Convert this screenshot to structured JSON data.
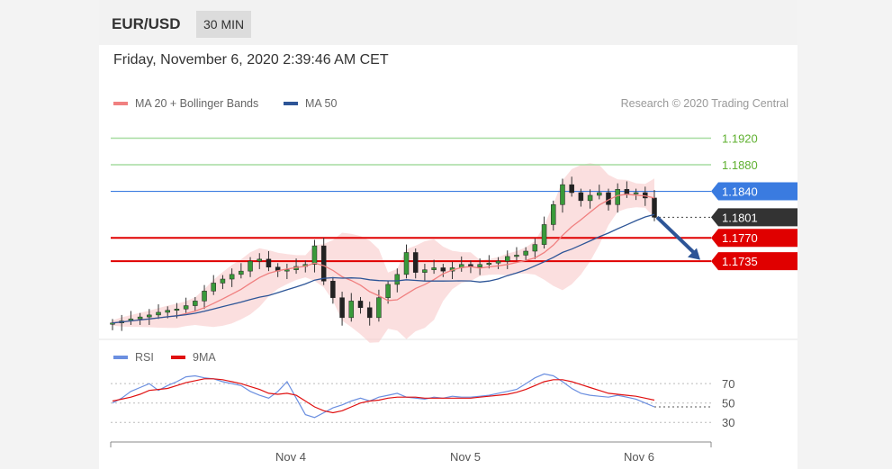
{
  "header": {
    "symbol": "EUR/USD",
    "timeframe": "30 MIN"
  },
  "datetime": "Friday, November 6, 2020 2:39:46 AM CET",
  "legend": [
    {
      "label": "MA 20 + Bollinger Bands",
      "color": "#f08080"
    },
    {
      "label": "MA 50",
      "color": "#2d5597"
    }
  ],
  "credit": "Research © 2020 Trading Central",
  "rsi_legend": [
    {
      "label": "RSI",
      "color": "#6b8fe0"
    },
    {
      "label": "9MA",
      "color": "#e01010"
    }
  ],
  "colors": {
    "resistance_green": "#a6dca0",
    "pivot_blue": "#3a7be0",
    "support_red": "#e00000",
    "price_tag": "#333333",
    "arrow": "#2d5597"
  },
  "chart_data": [
    {
      "type": "line",
      "subtype": "candlestick",
      "x_labels": [
        "Nov 4",
        "Nov 5",
        "Nov 6"
      ],
      "ylim": [
        1.162,
        1.1945
      ],
      "close_series": [
        1.1642,
        1.1645,
        1.1648,
        1.1651,
        1.1654,
        1.1658,
        1.1661,
        1.1663,
        1.1668,
        1.1675,
        1.169,
        1.1702,
        1.1708,
        1.1715,
        1.172,
        1.1735,
        1.1738,
        1.1726,
        1.172,
        1.1722,
        1.1727,
        1.173,
        1.1758,
        1.1705,
        1.168,
        1.165,
        1.1675,
        1.1665,
        1.165,
        1.168,
        1.17,
        1.1715,
        1.1748,
        1.1718,
        1.1722,
        1.1725,
        1.172,
        1.1725,
        1.173,
        1.1726,
        1.173,
        1.1732,
        1.1735,
        1.1742,
        1.1744,
        1.175,
        1.176,
        1.179,
        1.182,
        1.185,
        1.1838,
        1.1826,
        1.1834,
        1.1838,
        1.182,
        1.1843,
        1.1836,
        1.1838,
        1.183,
        1.1801
      ],
      "price_levels": [
        {
          "label": "1.1920",
          "value": 1.192,
          "role": "resistance"
        },
        {
          "label": "1.1880",
          "value": 1.188,
          "role": "resistance"
        },
        {
          "label": "1.1840",
          "value": 1.184,
          "role": "pivot"
        },
        {
          "label": "1.1801",
          "value": 1.1801,
          "role": "last"
        },
        {
          "label": "1.1770",
          "value": 1.177,
          "role": "support"
        },
        {
          "label": "1.1735",
          "value": 1.1735,
          "role": "support"
        }
      ],
      "legend": [
        "MA 20 + Bollinger Bands",
        "MA 50"
      ]
    },
    {
      "type": "line",
      "title": "RSI",
      "ylim": [
        20,
        85
      ],
      "y_ticks": [
        70,
        50,
        30
      ],
      "series": [
        {
          "name": "RSI",
          "values": [
            50,
            55,
            62,
            66,
            70,
            63,
            68,
            72,
            77,
            78,
            76,
            75,
            72,
            70,
            68,
            62,
            58,
            55,
            62,
            72,
            55,
            38,
            35,
            40,
            45,
            48,
            52,
            55,
            52,
            56,
            58,
            60,
            56,
            55,
            54,
            56,
            55,
            57,
            56,
            56,
            57,
            58,
            60,
            62,
            64,
            70,
            76,
            80,
            78,
            72,
            65,
            60,
            58,
            57,
            56,
            58,
            56,
            54,
            50,
            46
          ]
        },
        {
          "name": "9MA",
          "values": [
            52,
            54,
            56,
            59,
            63,
            64,
            65,
            68,
            71,
            73,
            75,
            75,
            74,
            72,
            70,
            67,
            64,
            60,
            59,
            60,
            58,
            52,
            46,
            42,
            40,
            42,
            46,
            50,
            52,
            53,
            55,
            56,
            56,
            56,
            55,
            55,
            55,
            55,
            55,
            55,
            56,
            57,
            58,
            59,
            61,
            64,
            68,
            72,
            74,
            74,
            72,
            69,
            66,
            63,
            60,
            59,
            58,
            57,
            55,
            53
          ]
        }
      ]
    }
  ]
}
